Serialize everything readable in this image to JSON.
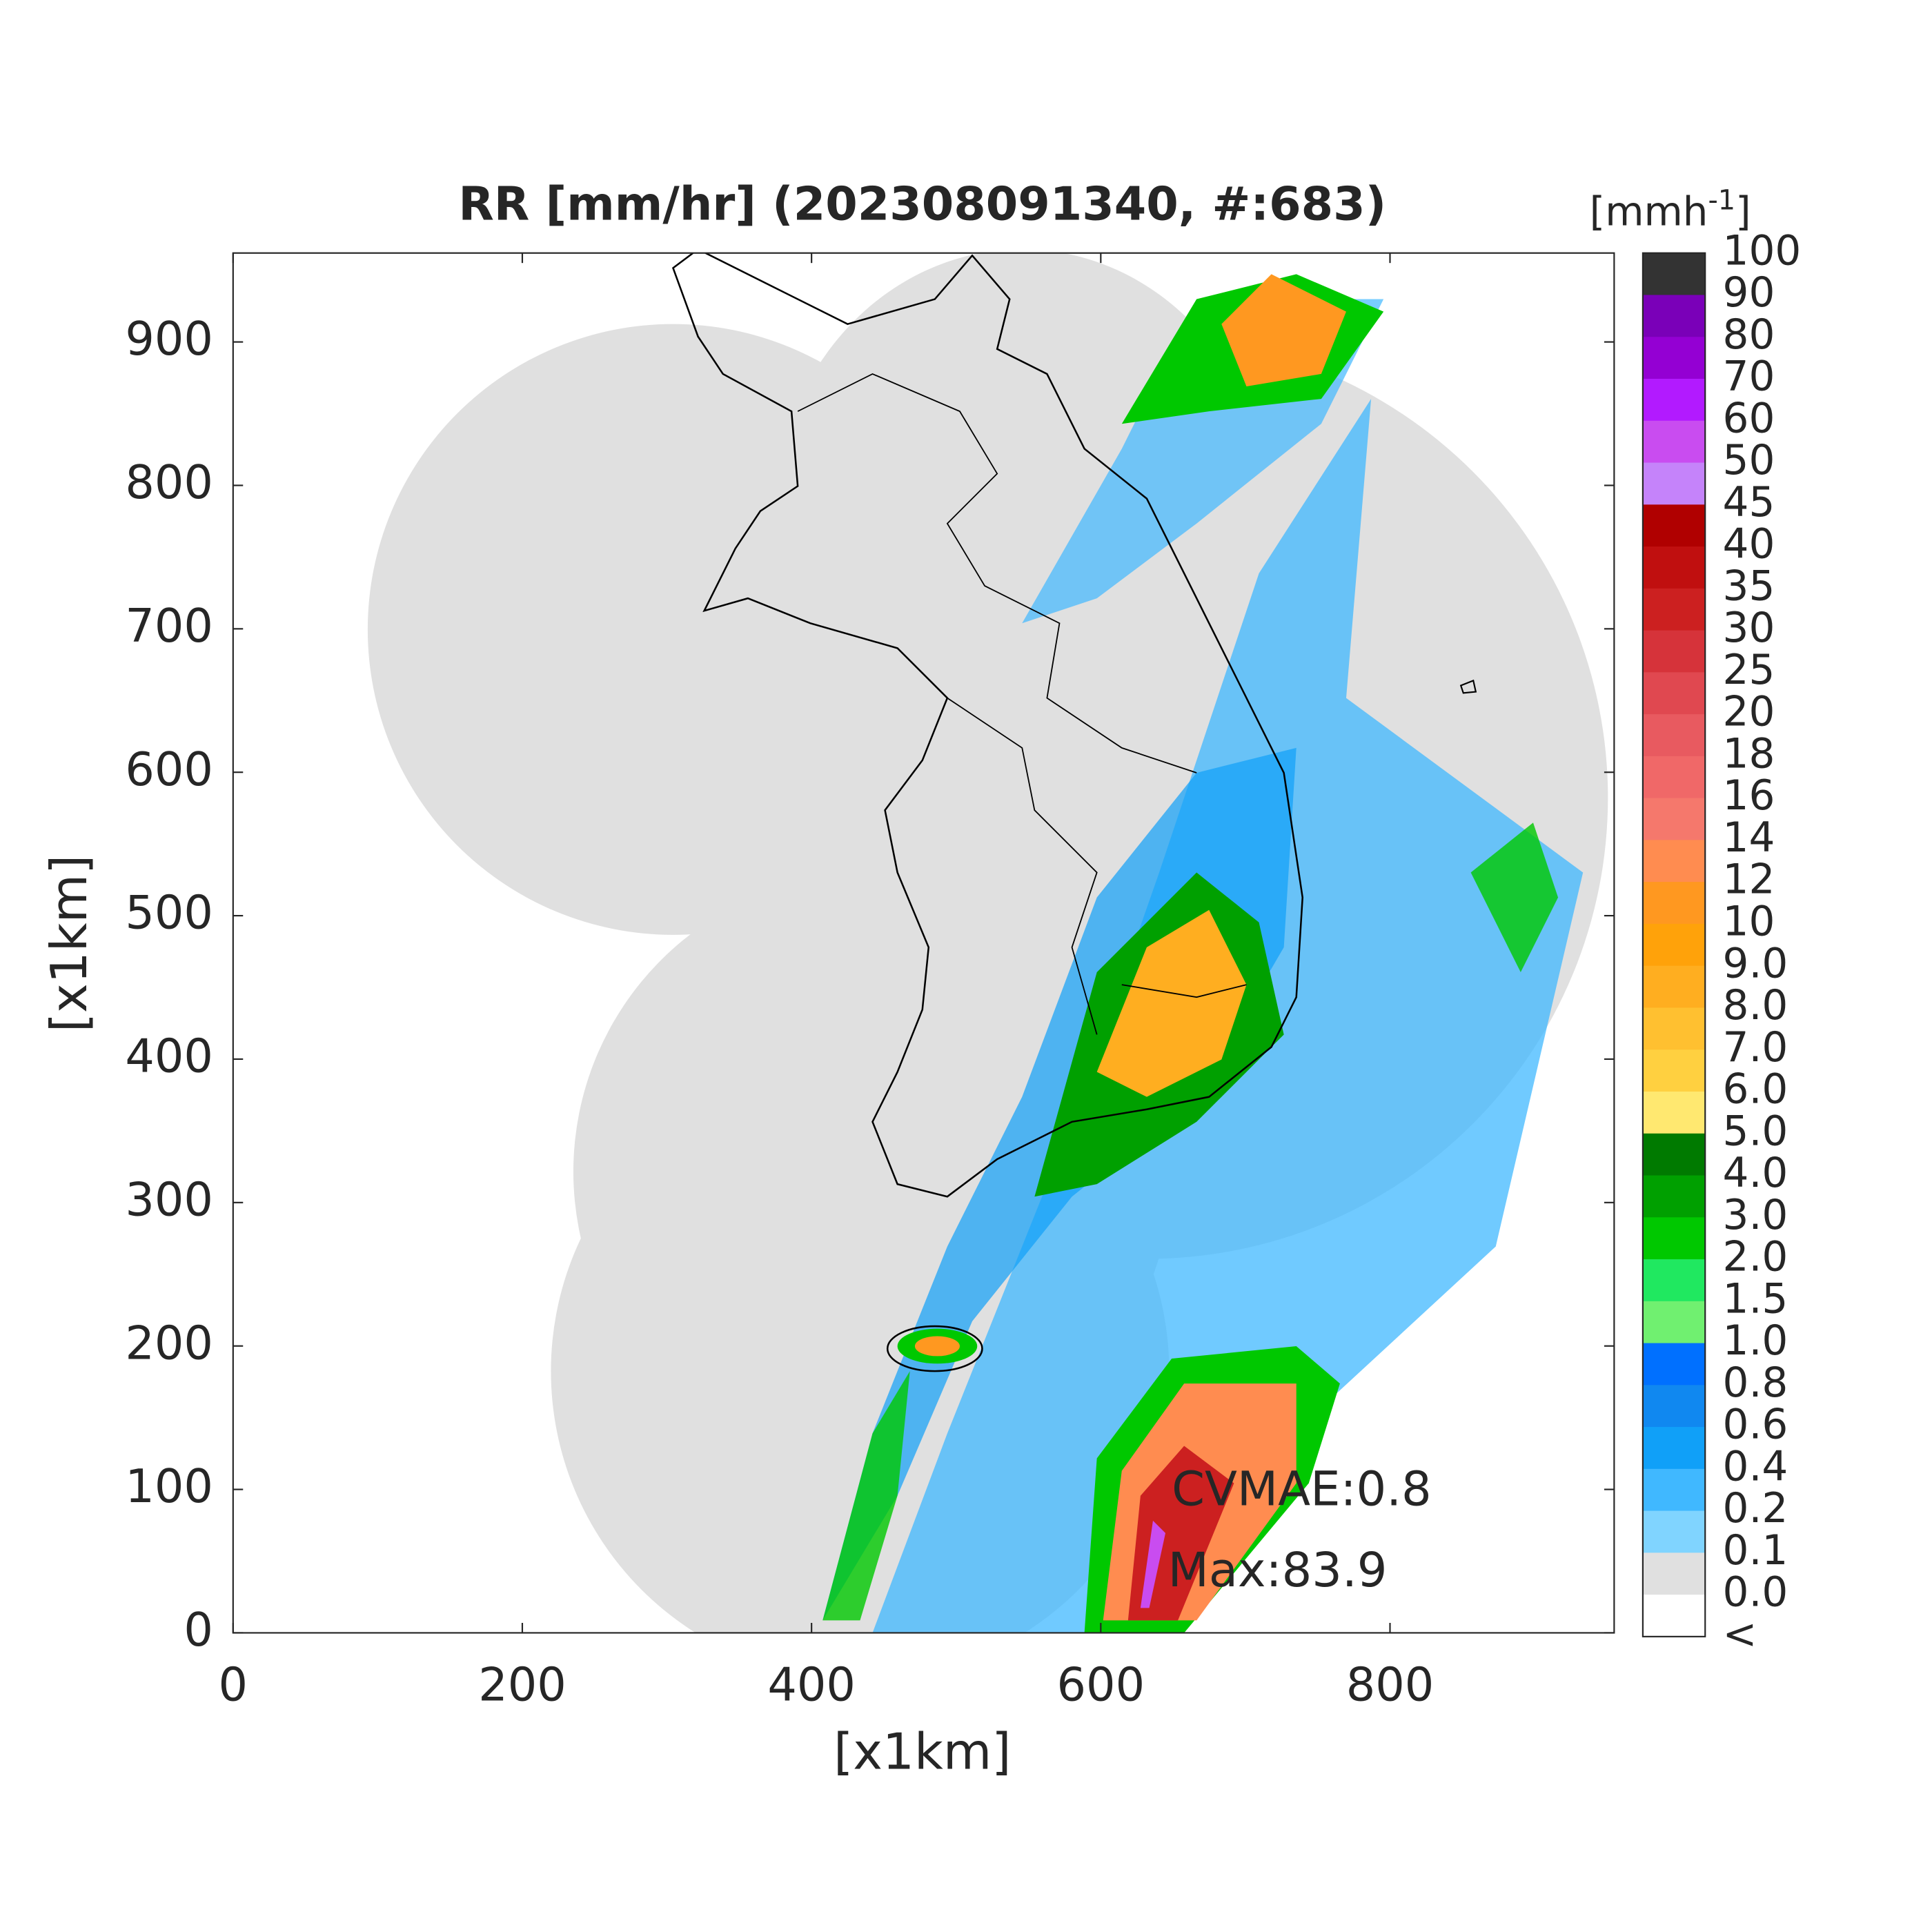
{
  "chart_data": {
    "type": "map",
    "title": "RR [mm/hr] (202308091340, #:683)",
    "x_label": "[x1km]",
    "y_label": "[x1km]",
    "xlim": [
      0,
      955
    ],
    "ylim": [
      0,
      962
    ],
    "xticks": [
      0,
      200,
      400,
      600,
      800
    ],
    "yticks": [
      0,
      100,
      200,
      300,
      400,
      500,
      600,
      700,
      800,
      900
    ],
    "annotations": [
      "CVMAE:0.8",
      "Max:83.9"
    ],
    "colorbar": {
      "unit": [
        "[mmh",
        "-1",
        "]"
      ],
      "labels": [
        "100",
        "90",
        "80",
        "70",
        "60",
        "50",
        "45",
        "40",
        "35",
        "30",
        "25",
        "20",
        "18",
        "16",
        "14",
        "12",
        "10",
        "9.0",
        "8.0",
        "7.0",
        "6.0",
        "5.0",
        "4.0",
        "3.0",
        "2.0",
        "1.5",
        "1.0",
        "0.8",
        "0.6",
        "0.4",
        "0.2",
        "0.1",
        "0.0",
        "<"
      ],
      "colors": [
        "#333333",
        "#7a00b8",
        "#9400d3",
        "#b21aff",
        "#c94cf0",
        "#c583fa",
        "#b00000",
        "#c00f0f",
        "#cc2020",
        "#d6333a",
        "#e04850",
        "#e85a60",
        "#f06868",
        "#f5786c",
        "#ff8c50",
        "#ff9820",
        "#ffa20a",
        "#ffae20",
        "#ffc030",
        "#ffd040",
        "#ffe870",
        "#007a00",
        "#00a000",
        "#00c800",
        "#20e860",
        "#70f070",
        "#0070ff",
        "#1088f0",
        "#10a0f8",
        "#40b8ff",
        "#80d4ff",
        "#e0e0e0",
        "#ffffff"
      ]
    }
  }
}
